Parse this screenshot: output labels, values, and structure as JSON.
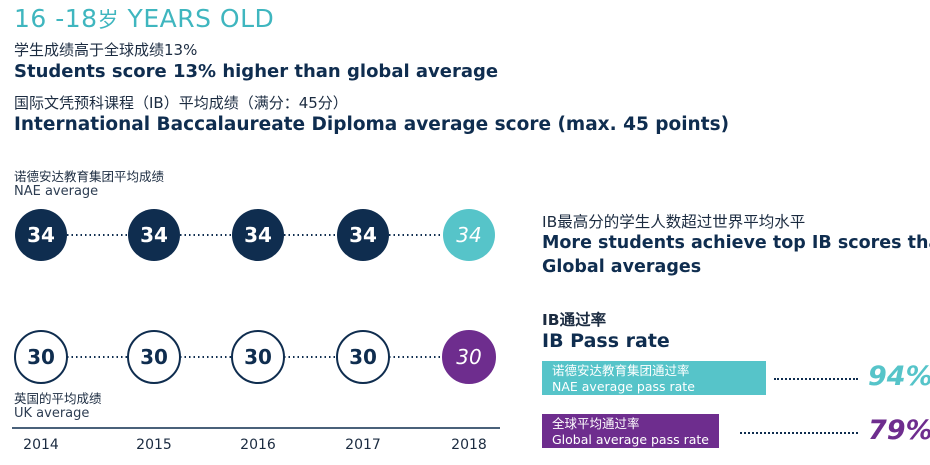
{
  "header": {
    "title_age": "16 -18",
    "title_sui": "岁",
    "title_years": "YEARS OLD",
    "line1_cn": "学生成绩高于全球成绩13%",
    "line1_en": "Students score 13% higher than global average",
    "line2_cn": "国际文凭预科课程（IB）平均成绩（满分：45分）",
    "line2_en": "International Baccalaureate Diploma average score (max. 45 points)"
  },
  "chart_data": {
    "type": "line",
    "x": [
      "2014",
      "2015",
      "2016",
      "2017",
      "2018"
    ],
    "series": [
      {
        "name": "NAE average",
        "name_cn": "诺德安达教育集团平均成绩",
        "values": [
          34,
          34,
          34,
          34,
          34
        ]
      },
      {
        "name": "UK average",
        "name_cn": "英国的平均成绩",
        "values": [
          30,
          30,
          30,
          30,
          30
        ]
      }
    ],
    "colors": {
      "nae": "#0f2d4f",
      "nae_highlight": "#56c4c9",
      "uk_highlight": "#6e2d8e",
      "uk_ring": "#0f2d4f"
    }
  },
  "right_panel": {
    "top_cn": "IB最高分的学生人数超过世界平均水平",
    "top_en_1": "More students achieve top IB scores than",
    "top_en_2": "Global averages",
    "pass_cn": "IB通过率",
    "pass_en": "IB Pass rate",
    "nae_cn": "诺德安达教育集团通过率",
    "nae_en": "NAE average pass rate",
    "nae_value": "94%",
    "nae_color": "#56c4c9",
    "global_cn": "全球平均通过率",
    "global_en": "Global average pass rate",
    "global_value": "79%",
    "global_color": "#6e2d8e"
  }
}
